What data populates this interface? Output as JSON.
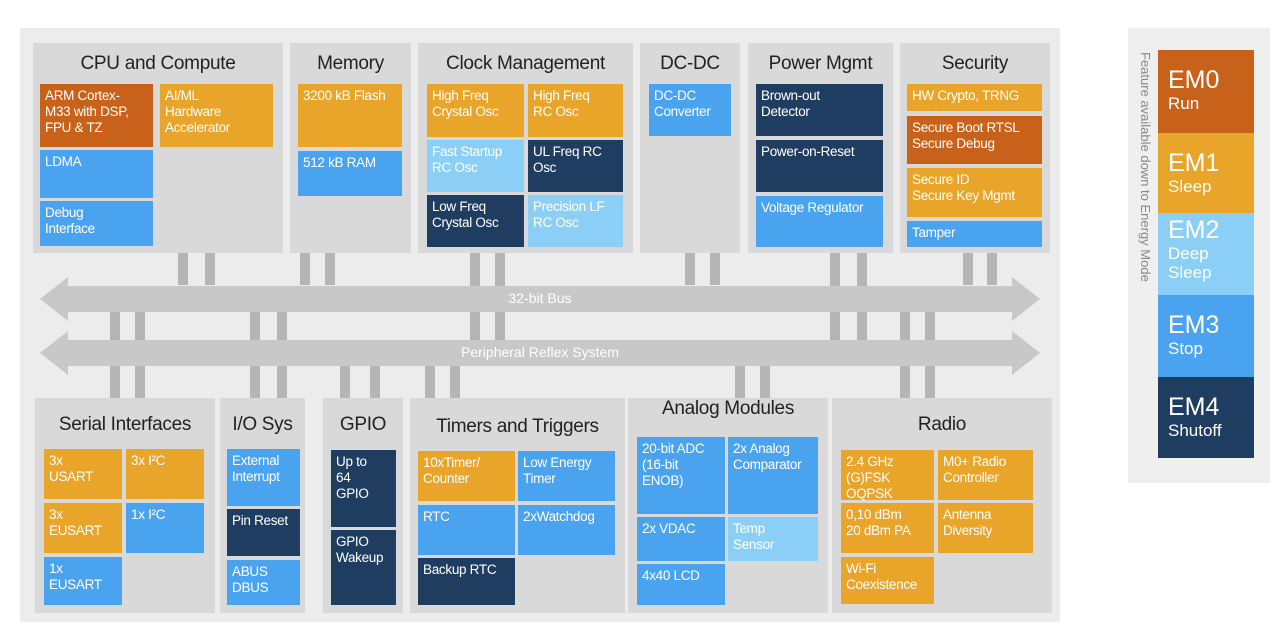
{
  "colors": {
    "dark_orange": "#c8611a",
    "orange": "#e9a42a",
    "blue": "#4aa3ee",
    "light_blue": "#8ccff6",
    "navy": "#1f3d60",
    "panel": "#d9d9d9",
    "bus": "#c8c8c8"
  },
  "buses": {
    "top": "32-bit Bus",
    "bottom": "Peripheral Reflex System"
  },
  "panels": [
    {
      "title": "CPU and Compute",
      "blocks": [
        {
          "text": "ARM Cortex-\nM33 with DSP,\nFPU & TZ",
          "color": "dark_orange"
        },
        {
          "text": "AI/ML\nHardware\nAccelerator",
          "color": "orange"
        },
        {
          "text": "LDMA",
          "color": "blue"
        },
        {
          "text": "Debug\nInterface",
          "color": "blue"
        }
      ]
    },
    {
      "title": "Memory",
      "blocks": [
        {
          "text": "3200 kB Flash",
          "color": "orange"
        },
        {
          "text": "512 kB RAM",
          "color": "blue"
        }
      ]
    },
    {
      "title": "Clock Management",
      "blocks": [
        {
          "text": "High Freq\nCrystal Osc",
          "color": "orange"
        },
        {
          "text": "High Freq\nRC Osc",
          "color": "orange"
        },
        {
          "text": "Fast Startup\nRC Osc",
          "color": "light_blue"
        },
        {
          "text": "UL Freq RC\nOsc",
          "color": "navy"
        },
        {
          "text": "Low Freq\nCrystal Osc",
          "color": "navy"
        },
        {
          "text": "Precision LF\nRC Osc",
          "color": "light_blue"
        }
      ]
    },
    {
      "title": "DC-DC",
      "blocks": [
        {
          "text": "DC-DC\nConverter",
          "color": "blue"
        }
      ]
    },
    {
      "title": "Power Mgmt",
      "blocks": [
        {
          "text": "Brown-out\nDetector",
          "color": "navy"
        },
        {
          "text": "Power-on-Reset",
          "color": "navy"
        },
        {
          "text": "Voltage Regulator",
          "color": "blue"
        }
      ]
    },
    {
      "title": "Security",
      "blocks": [
        {
          "text": "HW Crypto, TRNG",
          "color": "orange"
        },
        {
          "text": "Secure Boot RTSL\nSecure Debug",
          "color": "dark_orange"
        },
        {
          "text": "Secure ID\nSecure Key Mgmt",
          "color": "orange"
        },
        {
          "text": "Tamper",
          "color": "blue"
        }
      ]
    },
    {
      "title": "Serial Interfaces",
      "blocks": [
        {
          "text": "3x\nUSART",
          "color": "orange"
        },
        {
          "text": "3x I²C",
          "color": "orange"
        },
        {
          "text": "3x\nEUSART",
          "color": "orange"
        },
        {
          "text": "1x I²C",
          "color": "blue"
        },
        {
          "text": "1x\nEUSART",
          "color": "blue"
        }
      ]
    },
    {
      "title": "I/O Sys",
      "blocks": [
        {
          "text": "External\nInterrupt",
          "color": "blue"
        },
        {
          "text": "Pin Reset",
          "color": "navy"
        },
        {
          "text": "ABUS\nDBUS",
          "color": "blue"
        }
      ]
    },
    {
      "title": "GPIO",
      "blocks": [
        {
          "text": "Up to\n64\nGPIO",
          "color": "navy"
        },
        {
          "text": "GPIO\nWakeup",
          "color": "navy"
        }
      ]
    },
    {
      "title": "Timers and Triggers",
      "blocks": [
        {
          "text": "10xTimer/\nCounter",
          "color": "orange"
        },
        {
          "text": "Low Energy\nTimer",
          "color": "blue"
        },
        {
          "text": "RTC",
          "color": "blue"
        },
        {
          "text": "2xWatchdog",
          "color": "blue"
        },
        {
          "text": "Backup RTC",
          "color": "navy"
        }
      ]
    },
    {
      "title": "Analog Modules",
      "blocks": [
        {
          "text": "20-bit ADC\n(16-bit\nENOB)",
          "color": "blue"
        },
        {
          "text": "2x Analog\nComparator",
          "color": "blue"
        },
        {
          "text": "2x VDAC",
          "color": "blue"
        },
        {
          "text": "Temp\nSensor",
          "color": "light_blue"
        },
        {
          "text": "4x40 LCD",
          "color": "blue"
        }
      ]
    },
    {
      "title": "Radio",
      "blocks": [
        {
          "text": "2.4 GHz\n(G)FSK\nOQPSK",
          "color": "orange"
        },
        {
          "text": "M0+ Radio\nController",
          "color": "orange"
        },
        {
          "text": "0,10 dBm\n20 dBm PA",
          "color": "orange"
        },
        {
          "text": "Antenna\nDiversity",
          "color": "orange"
        },
        {
          "text": "Wi-Fi\nCoexistence",
          "color": "orange"
        }
      ]
    }
  ],
  "energy_modes": {
    "caption": "Feature available down to Energy Mode",
    "modes": [
      {
        "mode": "EM0",
        "name": "Run",
        "color": "dark_orange"
      },
      {
        "mode": "EM1",
        "name": "Sleep",
        "color": "orange"
      },
      {
        "mode": "EM2",
        "name": "Deep\nSleep",
        "color": "light_blue"
      },
      {
        "mode": "EM3",
        "name": "Stop",
        "color": "blue"
      },
      {
        "mode": "EM4",
        "name": "Shutoff",
        "color": "navy"
      }
    ]
  }
}
